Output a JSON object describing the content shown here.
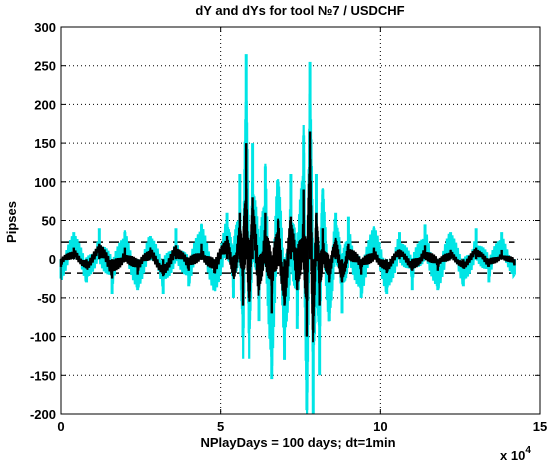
{
  "chart_data": {
    "type": "line",
    "title": "dY and dYs  for tool  №7 / USDCHF",
    "xlabel": "NPlayDays = 100 days;  dt=1min",
    "ylabel": "Pipses",
    "x_exponent_label": "x 10",
    "x_exponent_power": "4",
    "xlim": [
      0,
      15
    ],
    "ylim": [
      -200,
      300
    ],
    "x_ticks": [
      0,
      5,
      10,
      15
    ],
    "y_ticks": [
      -200,
      -150,
      -100,
      -50,
      0,
      50,
      100,
      150,
      200,
      250,
      300
    ],
    "grid": true,
    "legend": "none",
    "series": [
      {
        "color": "#00e5e5",
        "x": [
          0.0,
          0.4,
          0.8,
          1.2,
          1.6,
          2.0,
          2.4,
          2.8,
          3.2,
          3.6,
          4.0,
          4.4,
          4.8,
          5.2,
          5.4,
          5.6,
          5.7,
          5.8,
          5.9,
          6.0,
          6.2,
          6.4,
          6.6,
          6.8,
          7.0,
          7.2,
          7.4,
          7.6,
          7.7,
          7.8,
          7.9,
          8.0,
          8.1,
          8.2,
          8.4,
          8.6,
          8.8,
          9.0,
          9.4,
          9.8,
          10.2,
          10.6,
          11.0,
          11.4,
          11.8,
          12.2,
          12.6,
          13.0,
          13.4,
          13.8,
          14.2
        ],
        "values": [
          -25,
          35,
          -30,
          40,
          -45,
          35,
          -40,
          30,
          -45,
          40,
          -35,
          45,
          -40,
          60,
          -50,
          110,
          -100,
          265,
          -90,
          150,
          -80,
          120,
          -155,
          100,
          -130,
          110,
          -90,
          160,
          -195,
          255,
          -200,
          110,
          -150,
          90,
          -80,
          60,
          -70,
          55,
          -50,
          40,
          -45,
          35,
          -40,
          45,
          -40,
          35,
          -35,
          40,
          -30,
          35,
          -20
        ]
      },
      {
        "color": "#000000",
        "x": [
          0.0,
          0.4,
          0.8,
          1.2,
          1.6,
          2.0,
          2.4,
          2.8,
          3.2,
          3.6,
          4.0,
          4.4,
          4.8,
          5.2,
          5.4,
          5.6,
          5.7,
          5.8,
          5.9,
          6.0,
          6.2,
          6.4,
          6.6,
          6.8,
          7.0,
          7.2,
          7.4,
          7.6,
          7.7,
          7.8,
          7.9,
          8.0,
          8.1,
          8.2,
          8.4,
          8.6,
          8.8,
          9.0,
          9.4,
          9.8,
          10.2,
          10.6,
          11.0,
          11.4,
          11.8,
          12.2,
          12.6,
          13.0,
          13.4,
          13.8,
          14.2
        ],
        "values": [
          -10,
          15,
          -12,
          20,
          -25,
          15,
          -20,
          12,
          -22,
          18,
          -15,
          20,
          -18,
          30,
          -20,
          60,
          -60,
          150,
          -50,
          80,
          -40,
          60,
          -70,
          50,
          -60,
          55,
          -40,
          90,
          -100,
          165,
          -95,
          60,
          -60,
          40,
          -30,
          25,
          -30,
          20,
          -20,
          15,
          -18,
          12,
          -15,
          18,
          -15,
          12,
          -12,
          15,
          -10,
          12,
          -8
        ]
      }
    ],
    "hlines": [
      {
        "y": 22,
        "color": "#000000",
        "dash": true
      },
      {
        "y": -18,
        "color": "#000000",
        "dash": true
      }
    ]
  }
}
